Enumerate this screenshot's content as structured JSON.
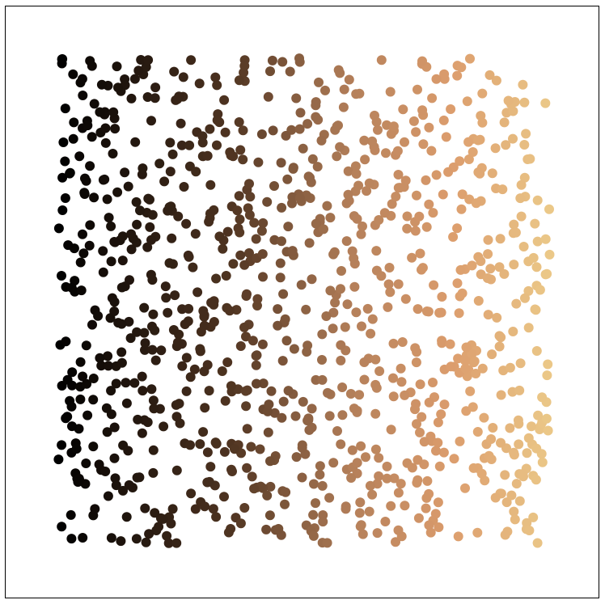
{
  "chart_data": {
    "type": "scatter",
    "title": "",
    "xlabel": "",
    "ylabel": "",
    "xlim": [
      0,
      1
    ],
    "ylim": [
      0,
      1
    ],
    "grid": false,
    "legend": "none",
    "axes_ticks": false,
    "point_count": 1000,
    "random_seed": 7,
    "color_scale": {
      "encodes": "x",
      "stops": [
        {
          "at": 0.0,
          "color": "#000000"
        },
        {
          "at": 0.35,
          "color": "#4f3421"
        },
        {
          "at": 0.6,
          "color": "#b5805a"
        },
        {
          "at": 0.8,
          "color": "#dc9d6d"
        },
        {
          "at": 1.0,
          "color": "#ebc888"
        }
      ]
    },
    "marker": {
      "shape": "circle",
      "opacity": 1
    }
  },
  "frame": {
    "color": "#000000",
    "background": "#ffffff"
  }
}
